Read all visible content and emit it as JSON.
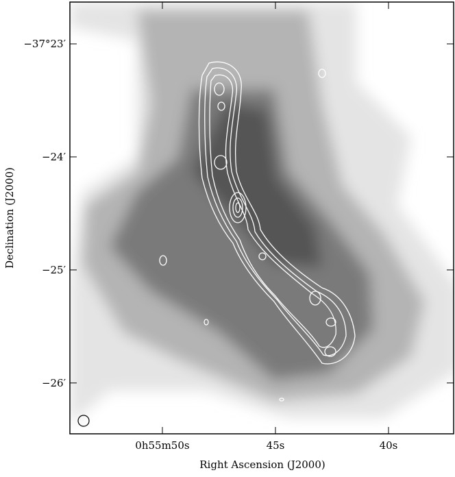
{
  "chart_data": {
    "type": "image",
    "xlabel": "Right Ascension (J2000)",
    "ylabel": "Declination (J2000)",
    "xlim": [
      54.09,
      37.12
    ],
    "ylim": [
      -26.45,
      -22.63
    ],
    "xticks": [
      {
        "value": 50,
        "label": "0h55m50s"
      },
      {
        "value": 45,
        "label": "45s"
      },
      {
        "value": 40,
        "label": "40s"
      }
    ],
    "yticks": [
      {
        "value": -23,
        "label": "−37°23′"
      },
      {
        "value": -24,
        "label": "−24′"
      },
      {
        "value": -25,
        "label": "−25′"
      },
      {
        "value": -26,
        "label": "−26′"
      }
    ]
  }
}
